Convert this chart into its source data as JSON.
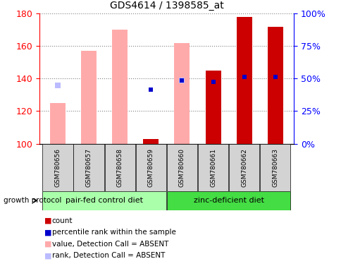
{
  "title": "GDS4614 / 1398585_at",
  "samples": [
    "GSM780656",
    "GSM780657",
    "GSM780658",
    "GSM780659",
    "GSM780660",
    "GSM780661",
    "GSM780662",
    "GSM780663"
  ],
  "ylim_left": [
    100,
    180
  ],
  "ylim_right": [
    0,
    100
  ],
  "yticks_left": [
    100,
    120,
    140,
    160,
    180
  ],
  "yticks_right": [
    0,
    25,
    50,
    75,
    100
  ],
  "ytick_labels_right": [
    "0%",
    "25%",
    "50%",
    "75%",
    "100%"
  ],
  "value_absent": [
    125,
    157,
    170,
    null,
    162,
    null,
    null,
    null
  ],
  "rank_absent": [
    136,
    null,
    null,
    null,
    139,
    null,
    null,
    null
  ],
  "count": [
    null,
    null,
    null,
    103,
    null,
    145,
    178,
    172
  ],
  "percentile_rank": [
    null,
    null,
    null,
    133,
    139,
    138,
    141,
    141
  ],
  "count_color": "#cc0000",
  "percentile_color": "#0000cc",
  "value_absent_color": "#ffaaaa",
  "rank_absent_color": "#bbbbff",
  "group0_label": "pair-fed control diet",
  "group0_samples": [
    0,
    1,
    2,
    3
  ],
  "group0_color": "#aaffaa",
  "group1_label": "zinc-deficient diet",
  "group1_samples": [
    4,
    5,
    6,
    7
  ],
  "group1_color": "#44dd44",
  "group_label": "growth protocol",
  "bar_width": 0.5,
  "legend_items": [
    [
      "#cc0000",
      "count"
    ],
    [
      "#0000cc",
      "percentile rank within the sample"
    ],
    [
      "#ffaaaa",
      "value, Detection Call = ABSENT"
    ],
    [
      "#bbbbff",
      "rank, Detection Call = ABSENT"
    ]
  ]
}
